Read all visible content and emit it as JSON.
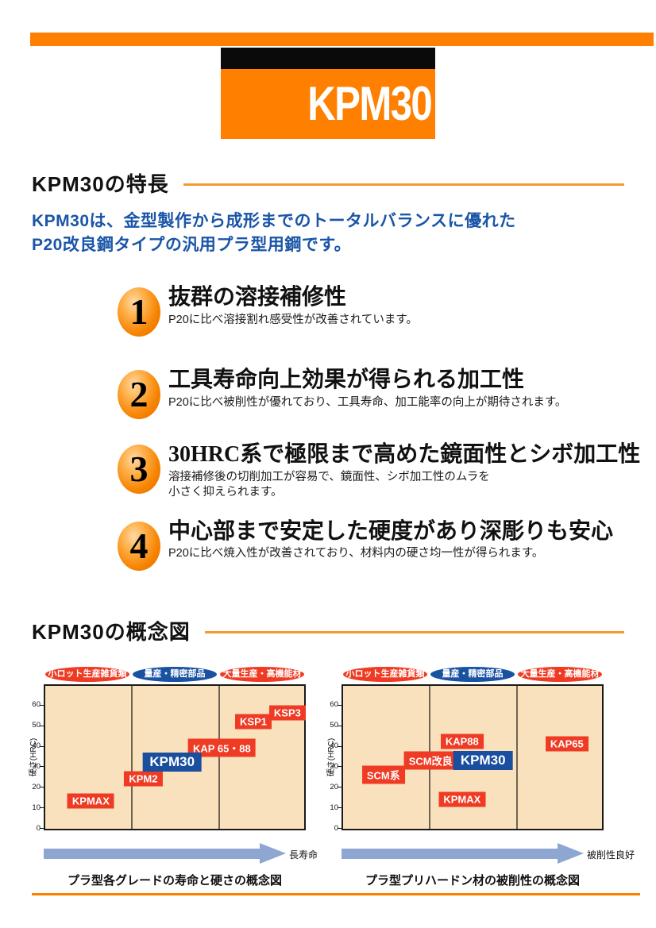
{
  "brand": {
    "label": "KPM30"
  },
  "colors": {
    "accent_orange": "#FF8000",
    "heading_rule_orange": "#F79A2D",
    "bottom_rule_orange": "#FF7E00",
    "lead_blue": "#1A55A8",
    "label_red": "#EF3B24",
    "label_blue": "#1A4F9F",
    "zone_blue": "#1A52A2",
    "plot_background": "#FAE1BE",
    "arrow_blue": "#8EA6D2"
  },
  "sections": {
    "features": {
      "heading": "KPM30の特長",
      "lead_line1": "KPM30は、金型製作から成形までのトータルバランスに優れた",
      "lead_line2": "P20改良鋼タイプの汎用プラ型用鋼です。",
      "items": [
        {
          "number": "1",
          "title": "抜群の溶接補修性",
          "desc_lines": [
            "P20に比べ溶接割れ感受性が改善されています。"
          ]
        },
        {
          "number": "2",
          "title": "工具寿命向上効果が得られる加工性",
          "desc_lines": [
            "P20に比べ被削性が優れており、工具寿命、加工能率の向上が期待されます。"
          ]
        },
        {
          "number": "3",
          "title": "30HRC系で極限まで高めた鏡面性とシボ加工性",
          "desc_lines": [
            "溶接補修後の切削加工が容易で、鏡面性、シボ加工性のムラを",
            "小さく抑えられます。"
          ]
        },
        {
          "number": "4",
          "title": "中心部まで安定した硬度があり深彫りも安心",
          "desc_lines": [
            "P20に比べ焼入性が改善されており、材料内の硬さ均一性が得られます。"
          ]
        }
      ]
    },
    "diagrams": {
      "heading": "KPM30の概念図"
    }
  },
  "chart_data": [
    {
      "type": "scatter",
      "title": "プラ型各グレードの寿命と硬さの概念図",
      "ylabel": "硬さ(HRC)",
      "yticks": [
        0,
        10,
        20,
        30,
        40,
        50,
        60
      ],
      "ylim": [
        0,
        70
      ],
      "x_axis_meaning": "寿命（右ほど長い）",
      "arrow_label": "長寿命",
      "grid": "two vertical zone dividers at 1/3 and 2/3",
      "zones": [
        {
          "label": "小ロット生産雑貨類",
          "color": "red"
        },
        {
          "label": "量産・精密部品",
          "color": "blue"
        },
        {
          "label": "大量生産・高機能材",
          "color": "red"
        }
      ],
      "points": [
        {
          "label": "KPMAX",
          "hrc": 13,
          "x": 0.18,
          "style": "red"
        },
        {
          "label": "KPM2",
          "hrc": 24,
          "x": 0.38,
          "style": "red"
        },
        {
          "label": "KAP 65・88",
          "hrc": 39,
          "x": 0.68,
          "style": "red"
        },
        {
          "label": "KSP1",
          "hrc": 52,
          "x": 0.8,
          "style": "red"
        },
        {
          "label": "KSP3",
          "hrc": 56,
          "x": 0.93,
          "style": "red"
        },
        {
          "label": "KPM30",
          "hrc": 32,
          "x": 0.49,
          "style": "blue-large"
        }
      ]
    },
    {
      "type": "scatter",
      "title": "プラ型プリハードン材の被削性の概念図",
      "ylabel": "硬さ(HRC)",
      "yticks": [
        0,
        10,
        20,
        30,
        40,
        50,
        60
      ],
      "ylim": [
        0,
        70
      ],
      "x_axis_meaning": "被削性（右ほど良好）",
      "arrow_label": "被削性良好",
      "grid": "two vertical zone dividers at 1/3 and 2/3",
      "zones": [
        {
          "label": "小ロット生産雑貨類",
          "color": "red"
        },
        {
          "label": "量産・精密部品",
          "color": "blue"
        },
        {
          "label": "大量生産・高機能材",
          "color": "red"
        }
      ],
      "points": [
        {
          "label": "SCM系",
          "hrc": 26,
          "x": 0.16,
          "style": "red"
        },
        {
          "label": "SCM改良",
          "hrc": 33,
          "x": 0.34,
          "style": "red"
        },
        {
          "label": "KAP88",
          "hrc": 42,
          "x": 0.46,
          "style": "red"
        },
        {
          "label": "KPMAX",
          "hrc": 14,
          "x": 0.46,
          "style": "red"
        },
        {
          "label": "KAP65",
          "hrc": 41,
          "x": 0.86,
          "style": "red"
        },
        {
          "label": "KPM30",
          "hrc": 33,
          "x": 0.54,
          "style": "blue-large"
        }
      ]
    }
  ]
}
